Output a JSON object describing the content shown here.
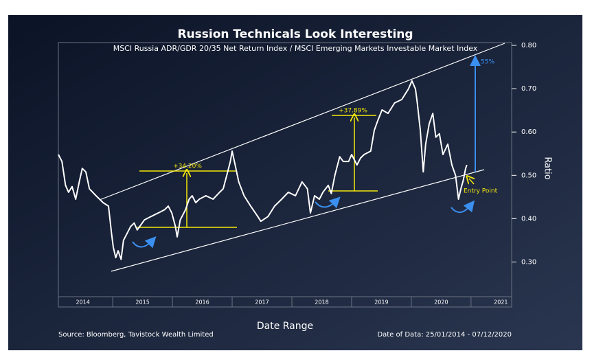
{
  "chart_data": {
    "type": "line",
    "title": "Russion Technicals Look Interesting",
    "subtitle": "MSCI Russia ADR/GDR 20/35 Net Return Index / MSCI Emerging Markets Investable Market Index",
    "x_label": "Date Range",
    "y_label": "Ratio",
    "source": "Source: Bloomberg, Tavistock Wealth Limited",
    "date_note": "Date of Data: 25/01/2014 - 07/12/2020",
    "annotations": {
      "gain1": "+34.20%",
      "gain2": "+37.89%",
      "target": "55%",
      "entry": "Entry Point"
    },
    "xlim": [
      2014.09,
      2021.68
    ],
    "xticks": [
      2014,
      2015,
      2016,
      2017,
      2018,
      2019,
      2020,
      2021
    ],
    "ylim": [
      0.22,
      0.8
    ],
    "yticks": [
      {
        "value": 0.3,
        "label": "0.30"
      },
      {
        "value": 0.4,
        "label": "0.40"
      },
      {
        "value": 0.5,
        "label": "0.50"
      },
      {
        "value": 0.6,
        "label": "0.60"
      },
      {
        "value": 0.7,
        "label": "0.70"
      },
      {
        "value": 0.8,
        "label": "0.80"
      }
    ],
    "x": [
      2014.09,
      2014.15,
      2014.21,
      2014.26,
      2014.32,
      2014.38,
      2014.44,
      2014.49,
      2014.55,
      2014.61,
      2014.72,
      2014.84,
      2014.93,
      2014.98,
      2015.01,
      2015.05,
      2015.09,
      2015.14,
      2015.18,
      2015.24,
      2015.3,
      2015.36,
      2015.41,
      2015.53,
      2015.64,
      2015.76,
      2015.87,
      2015.93,
      2015.99,
      2016.05,
      2016.08,
      2016.13,
      2016.22,
      2016.28,
      2016.33,
      2016.39,
      2016.45,
      2016.56,
      2016.68,
      2016.79,
      2016.85,
      2016.91,
      2016.97,
      2017.0,
      2017.05,
      2017.11,
      2017.2,
      2017.31,
      2017.43,
      2017.48,
      2017.6,
      2017.71,
      2017.83,
      2017.94,
      2018.06,
      2018.17,
      2018.26,
      2018.31,
      2018.38,
      2018.46,
      2018.52,
      2018.61,
      2018.66,
      2018.72,
      2018.8,
      2018.86,
      2018.95,
      2019.0,
      2019.09,
      2019.15,
      2019.21,
      2019.32,
      2019.38,
      2019.44,
      2019.51,
      2019.61,
      2019.72,
      2019.84,
      2019.95,
      2020.01,
      2020.07,
      2020.1,
      2020.15,
      2020.2,
      2020.24,
      2020.3,
      2020.36,
      2020.41,
      2020.47,
      2020.53,
      2020.61,
      2020.68,
      2020.74,
      2020.79,
      2020.83,
      2020.87,
      2020.91,
      2020.93
    ],
    "series": [
      {
        "name": "Ratio",
        "color": "#ffffff",
        "values": [
          0.548,
          0.532,
          0.477,
          0.461,
          0.474,
          0.445,
          0.485,
          0.516,
          0.508,
          0.469,
          0.453,
          0.437,
          0.429,
          0.366,
          0.334,
          0.31,
          0.326,
          0.306,
          0.35,
          0.366,
          0.382,
          0.39,
          0.374,
          0.397,
          0.405,
          0.413,
          0.421,
          0.429,
          0.413,
          0.382,
          0.358,
          0.397,
          0.421,
          0.445,
          0.453,
          0.437,
          0.445,
          0.453,
          0.445,
          0.461,
          0.469,
          0.5,
          0.532,
          0.556,
          0.524,
          0.485,
          0.453,
          0.429,
          0.405,
          0.394,
          0.405,
          0.429,
          0.445,
          0.461,
          0.453,
          0.485,
          0.469,
          0.413,
          0.453,
          0.445,
          0.461,
          0.477,
          0.458,
          0.5,
          0.543,
          0.532,
          0.532,
          0.548,
          0.524,
          0.54,
          0.548,
          0.556,
          0.604,
          0.627,
          0.651,
          0.643,
          0.667,
          0.675,
          0.699,
          0.718,
          0.699,
          0.667,
          0.604,
          0.508,
          0.572,
          0.619,
          0.643,
          0.588,
          0.596,
          0.548,
          0.572,
          0.524,
          0.5,
          0.445,
          0.469,
          0.489,
          0.516,
          0.524
        ]
      }
    ]
  }
}
